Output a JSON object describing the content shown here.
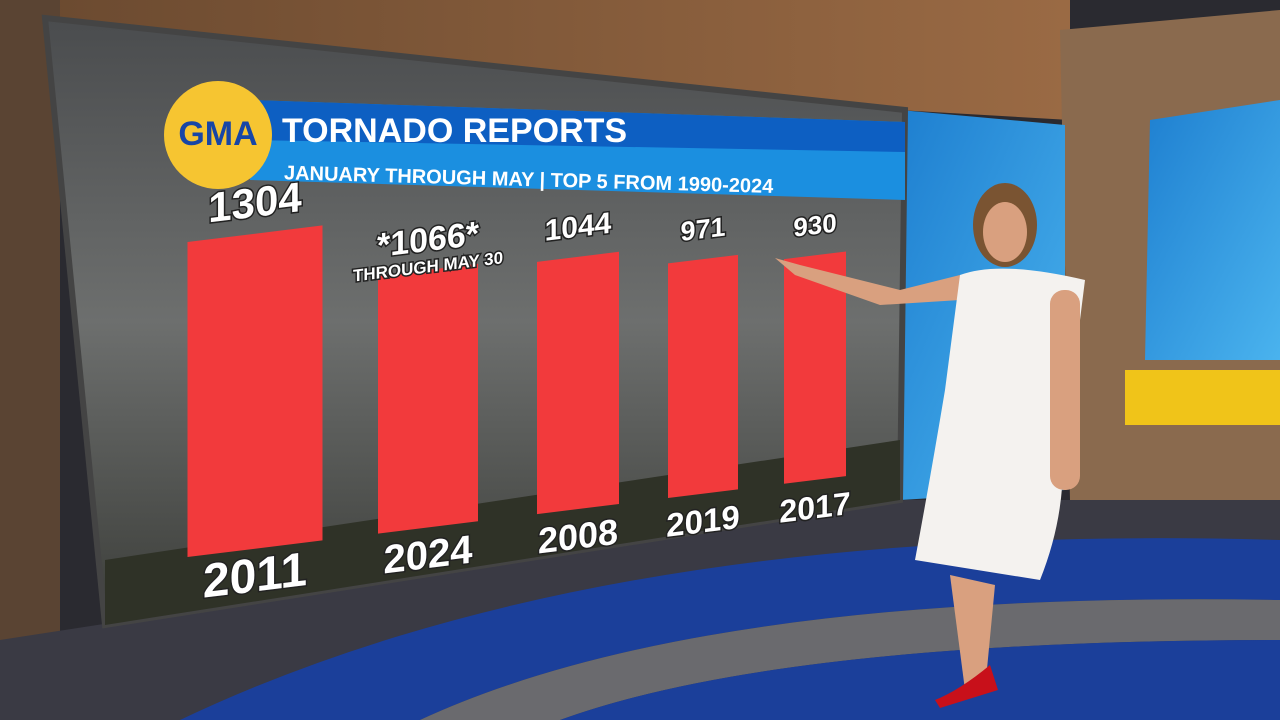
{
  "chart_data": {
    "type": "bar",
    "logo": "GMA",
    "title": "TORNADO REPORTS",
    "subtitle": "JANUARY THROUGH MAY | TOP 5 FROM 1990-2024",
    "categories": [
      "2011",
      "2024",
      "2008",
      "2019",
      "2017"
    ],
    "values": [
      1304,
      1066,
      1044,
      971,
      930
    ],
    "value_labels": [
      "1304",
      "*1066*",
      "1044",
      "971",
      "930"
    ],
    "annotations": [
      {
        "text": "THROUGH MAY 30",
        "category": 1
      }
    ],
    "color": "#f23a3c"
  }
}
